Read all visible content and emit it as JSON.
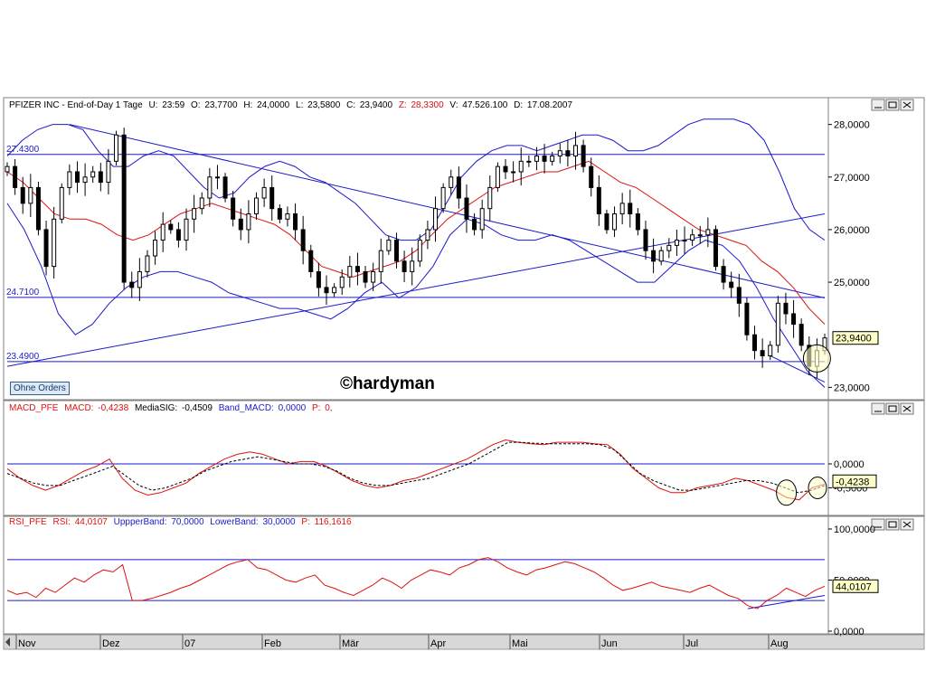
{
  "header": {
    "title": "PFIZER INC - End-of-Day 1 Tage",
    "u_label": "U:",
    "u_val": "23:59",
    "o_label": "O:",
    "o_val": "23,7700",
    "h_label": "H:",
    "h_val": "24,0000",
    "l_label": "L:",
    "l_val": "23,5800",
    "c_label": "C:",
    "c_val": "23,9400",
    "z_label": "Z:",
    "z_val": "28,3300",
    "v_label": "V:",
    "v_val": "47.526.100",
    "d_label": "D:",
    "d_val": "17.08.2007"
  },
  "macd_header": {
    "name": "MACD_PFE",
    "macd_label": "MACD:",
    "macd_val": "-0,4238",
    "sig_label": "MediaSIG:",
    "sig_val": "-0,4509",
    "band_label": "Band_MACD:",
    "band_val": "0,0000",
    "p_label": "P:",
    "p_val": "0,"
  },
  "rsi_header": {
    "name": "RSI_PFE",
    "rsi_label": "RSI:",
    "rsi_val": "44,0107",
    "upper_label": "UppperBand:",
    "upper_val": "70,0000",
    "lower_label": "LowerBand:",
    "lower_val": "30,0000",
    "p_label": "P:",
    "p_val": "116,1616"
  },
  "ohne_orders": "Ohne Orders",
  "watermark": "©hardyman",
  "colors": {
    "price": "#000000",
    "bollinger": "#1a1acc",
    "ma": "#dd1111",
    "level": "#1a1acc",
    "highlight": "#ffffc8"
  },
  "chart_data": [
    {
      "type": "candlestick",
      "xlabels": [
        "Nov",
        "Dez",
        "07",
        "Feb",
        "Mär",
        "Apr",
        "Mai",
        "Jun",
        "Jul",
        "Aug"
      ],
      "ylim": [
        22.8,
        28.2
      ],
      "yticks": [
        "28,0000",
        "27,0000",
        "26,0000",
        "25,0000",
        "23,0000"
      ],
      "last_value_label": "23,9400",
      "levels": [
        {
          "label": "27.4300",
          "value": 27.43
        },
        {
          "label": "24.7100",
          "value": 24.71
        },
        {
          "label": "23.4900",
          "value": 23.49
        }
      ],
      "close": [
        27.2,
        26.8,
        26.5,
        26.8,
        26.0,
        25.3,
        26.2,
        26.8,
        27.1,
        26.9,
        27.0,
        27.1,
        26.9,
        27.3,
        27.8,
        25.0,
        24.9,
        25.2,
        25.5,
        25.8,
        26.1,
        26.0,
        25.8,
        26.2,
        26.4,
        26.6,
        27.0,
        27.0,
        26.6,
        26.2,
        26.0,
        26.3,
        26.6,
        26.8,
        26.4,
        26.2,
        26.3,
        26.0,
        25.6,
        25.2,
        24.9,
        24.8,
        24.9,
        25.1,
        25.3,
        25.2,
        25.0,
        25.2,
        25.6,
        25.8,
        25.4,
        25.2,
        25.4,
        25.8,
        26.0,
        26.4,
        26.8,
        27.0,
        26.6,
        26.2,
        26.0,
        26.4,
        26.8,
        27.2,
        27.1,
        27.1,
        27.3,
        27.3,
        27.4,
        27.3,
        27.4,
        27.5,
        27.4,
        27.6,
        27.2,
        26.8,
        26.3,
        26.0,
        26.3,
        26.5,
        26.3,
        26.0,
        25.6,
        25.4,
        25.6,
        25.7,
        25.8,
        25.8,
        25.9,
        25.9,
        26.0,
        25.3,
        25.0,
        24.9,
        24.6,
        24.0,
        23.7,
        23.6,
        23.8,
        24.6,
        24.4,
        24.2,
        23.8,
        23.4,
        23.7,
        23.94
      ],
      "bollinger_upper": [
        27.4,
        27.7,
        27.9,
        28.0,
        28.0,
        27.9,
        27.5,
        27.2,
        27.2,
        27.4,
        27.5,
        27.4,
        27.1,
        26.8,
        26.6,
        26.7,
        27.0,
        27.2,
        27.3,
        27.2,
        27.0,
        26.9,
        26.7,
        26.5,
        26.2,
        25.9,
        25.8,
        25.8,
        26.0,
        26.5,
        27.0,
        27.3,
        27.5,
        27.6,
        27.6,
        27.5,
        27.6,
        27.7,
        27.8,
        27.8,
        27.7,
        27.5,
        27.5,
        27.6,
        27.8,
        28.0,
        28.1,
        28.1,
        28.1,
        28.0,
        27.7,
        27.1,
        26.4,
        26.0,
        25.8
      ],
      "bollinger_lower": [
        26.5,
        26.0,
        25.3,
        24.4,
        24.0,
        24.2,
        24.6,
        24.9,
        25.1,
        25.2,
        25.2,
        25.1,
        25.0,
        24.8,
        24.7,
        24.6,
        24.5,
        24.5,
        24.4,
        24.3,
        24.5,
        24.8,
        25.0,
        24.7,
        24.9,
        25.3,
        25.9,
        26.2,
        26.1,
        25.9,
        25.8,
        25.8,
        25.9,
        25.8,
        25.6,
        25.4,
        25.2,
        25.0,
        25.0,
        25.3,
        25.6,
        25.8,
        25.7,
        25.4,
        24.9,
        24.3,
        23.8,
        23.3,
        23.0
      ],
      "ma": [
        27.1,
        26.9,
        26.6,
        26.3,
        26.2,
        26.2,
        26.1,
        25.9,
        25.8,
        25.9,
        26.1,
        26.3,
        26.4,
        26.5,
        26.4,
        26.3,
        26.2,
        26.1,
        25.9,
        25.6,
        25.3,
        25.2,
        25.1,
        25.2,
        25.3,
        25.4,
        25.6,
        25.9,
        26.2,
        26.4,
        26.6,
        26.8,
        26.9,
        27.0,
        27.1,
        27.1,
        27.2,
        27.3,
        27.1,
        26.9,
        26.8,
        26.6,
        26.4,
        26.2,
        26.0,
        25.9,
        25.8,
        25.7,
        25.4,
        25.2,
        24.9,
        24.5,
        24.2
      ]
    },
    {
      "type": "line",
      "ylim": [
        -1.0,
        1.0
      ],
      "yticks": [
        "0,0000",
        "-0,5000"
      ],
      "last_value_label": "-0,4238",
      "macd": [
        -0.1,
        -0.3,
        -0.45,
        -0.55,
        -0.45,
        -0.3,
        -0.15,
        -0.05,
        0.1,
        -0.3,
        -0.55,
        -0.65,
        -0.6,
        -0.5,
        -0.4,
        -0.2,
        -0.05,
        0.1,
        0.2,
        0.25,
        0.2,
        0.1,
        0.0,
        0.05,
        0.05,
        -0.05,
        -0.2,
        -0.35,
        -0.45,
        -0.5,
        -0.45,
        -0.35,
        -0.3,
        -0.2,
        -0.1,
        0.0,
        0.1,
        0.25,
        0.4,
        0.5,
        0.45,
        0.42,
        0.4,
        0.45,
        0.45,
        0.45,
        0.42,
        0.4,
        0.2,
        -0.1,
        -0.3,
        -0.5,
        -0.6,
        -0.6,
        -0.5,
        -0.45,
        -0.4,
        -0.3,
        -0.35,
        -0.45,
        -0.55,
        -0.7,
        -0.75,
        -0.5,
        -0.42
      ],
      "signal": [
        -0.2,
        -0.3,
        -0.4,
        -0.45,
        -0.45,
        -0.35,
        -0.25,
        -0.15,
        -0.05,
        -0.25,
        -0.45,
        -0.55,
        -0.5,
        -0.4,
        -0.3,
        -0.15,
        -0.05,
        0.05,
        0.1,
        0.15,
        0.1,
        0.05,
        0.0,
        0.0,
        -0.05,
        -0.15,
        -0.3,
        -0.4,
        -0.45,
        -0.45,
        -0.4,
        -0.35,
        -0.3,
        -0.2,
        -0.1,
        0.0,
        0.15,
        0.3,
        0.45,
        0.45,
        0.43,
        0.42,
        0.42,
        0.42,
        0.42,
        0.4,
        0.3,
        0.05,
        -0.2,
        -0.35,
        -0.45,
        -0.55,
        -0.55,
        -0.5,
        -0.45,
        -0.4,
        -0.35,
        -0.35,
        -0.4,
        -0.5,
        -0.6,
        -0.55,
        -0.45
      ]
    },
    {
      "type": "line",
      "ylim": [
        0,
        100
      ],
      "yticks": [
        "100,0000",
        "50,0000",
        "0,0000"
      ],
      "last_value_label": "44,0107",
      "upper_band": 70,
      "lower_band": 30,
      "rsi": [
        40,
        36,
        38,
        33,
        42,
        38,
        45,
        52,
        48,
        55,
        60,
        58,
        65,
        30,
        30,
        32,
        35,
        38,
        42,
        45,
        50,
        55,
        60,
        65,
        68,
        70,
        62,
        60,
        55,
        50,
        48,
        52,
        55,
        45,
        42,
        38,
        35,
        40,
        45,
        52,
        48,
        42,
        50,
        55,
        60,
        58,
        55,
        62,
        65,
        70,
        72,
        68,
        62,
        58,
        55,
        60,
        62,
        65,
        68,
        66,
        62,
        58,
        52,
        45,
        40,
        42,
        45,
        48,
        44,
        42,
        40,
        38,
        42,
        45,
        40,
        35,
        32,
        25,
        22,
        30,
        35,
        42,
        38,
        34,
        40,
        44
      ]
    }
  ]
}
